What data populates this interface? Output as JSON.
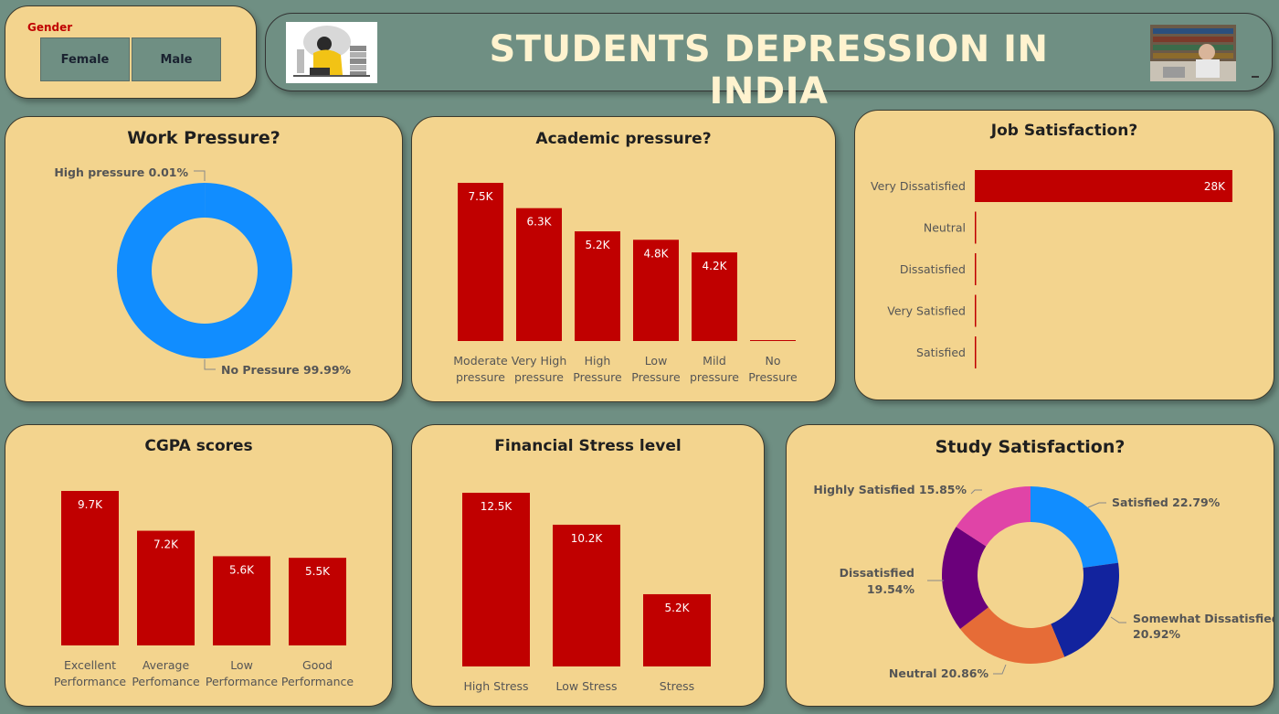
{
  "slicer": {
    "label": "Gender",
    "options": [
      "Female",
      "Male"
    ]
  },
  "header": {
    "title": "STUDENTS DEPRESSION IN INDIA"
  },
  "colors": {
    "bar": "#c00000",
    "card": "#f3d48e",
    "background": "#6f8f83"
  },
  "chart_data": [
    {
      "id": "work_pressure",
      "type": "pie",
      "subtype": "donut",
      "title": "Work Pressure?",
      "slices": [
        {
          "label": "High pressure",
          "value": 0.01,
          "display": "High pressure 0.01%"
        },
        {
          "label": "No Pressure",
          "value": 99.99,
          "display": "No Pressure 99.99%"
        }
      ],
      "colors": [
        "#118dff",
        "#118dff"
      ]
    },
    {
      "id": "academic_pressure",
      "type": "bar",
      "title": "Academic pressure?",
      "categories": [
        [
          "Moderate",
          "pressure"
        ],
        [
          "Very High",
          "pressure"
        ],
        [
          "High",
          "Pressure"
        ],
        [
          "Low",
          "Pressure"
        ],
        [
          "Mild",
          "pressure"
        ],
        [
          "No",
          "Pressure"
        ]
      ],
      "values": [
        7500,
        6300,
        5200,
        4800,
        4200,
        9
      ],
      "labels": [
        "7.5K",
        "6.3K",
        "5.2K",
        "4.8K",
        "4.2K",
        ""
      ]
    },
    {
      "id": "job_satisfaction",
      "type": "bar",
      "orientation": "horizontal",
      "title": "Job Satisfaction?",
      "categories": [
        "Very Dissatisfied",
        "Neutral",
        "Dissatisfied",
        "Very Satisfied",
        "Satisfied"
      ],
      "values": [
        28000,
        5,
        3,
        2,
        2
      ],
      "labels": [
        "28K",
        "",
        "",
        "",
        ""
      ]
    },
    {
      "id": "cgpa_scores",
      "type": "bar",
      "title": "CGPA scores",
      "categories": [
        [
          "Excellent",
          "Performance"
        ],
        [
          "Average",
          "Perfomance"
        ],
        [
          "Low",
          "Performance"
        ],
        [
          "Good",
          "Performance"
        ]
      ],
      "values": [
        9700,
        7200,
        5600,
        5500
      ],
      "labels": [
        "9.7K",
        "7.2K",
        "5.6K",
        "5.5K"
      ]
    },
    {
      "id": "financial_stress",
      "type": "bar",
      "title": "Financial Stress level",
      "categories": [
        [
          "High Stress"
        ],
        [
          "Low Stress"
        ],
        [
          "Stress"
        ]
      ],
      "values": [
        12500,
        10200,
        5200
      ],
      "labels": [
        "12.5K",
        "10.2K",
        "5.2K"
      ]
    },
    {
      "id": "study_satisfaction",
      "type": "pie",
      "subtype": "donut",
      "title": "Study Satisfaction?",
      "slices": [
        {
          "label": "Satisfied",
          "value": 22.79,
          "color": "#118dff",
          "display": [
            "Satisfied 22.79%"
          ]
        },
        {
          "label": "Somewhat Dissatisfied",
          "value": 20.92,
          "color": "#12239e",
          "display": [
            "Somewhat Dissatisfied",
            "20.92%"
          ]
        },
        {
          "label": "Neutral",
          "value": 20.86,
          "color": "#e66c37",
          "display": [
            "Neutral 20.86%"
          ]
        },
        {
          "label": "Dissatisfied",
          "value": 19.54,
          "color": "#6b007b",
          "display": [
            "Dissatisfied",
            "19.54%"
          ]
        },
        {
          "label": "Highly Satisfied",
          "value": 15.85,
          "color": "#e044a7",
          "display": [
            "Highly Satisfied 15.85%"
          ]
        }
      ]
    }
  ]
}
